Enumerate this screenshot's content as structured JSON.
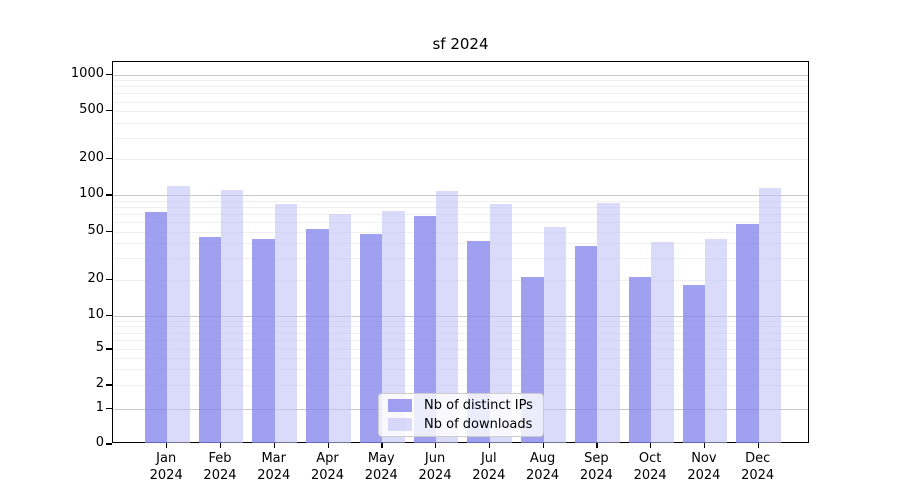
{
  "chart_data": {
    "type": "bar",
    "title": "sf 2024",
    "categories": [
      "Jan",
      "Feb",
      "Mar",
      "Apr",
      "May",
      "Jun",
      "Jul",
      "Aug",
      "Sep",
      "Oct",
      "Nov",
      "Dec"
    ],
    "category_year": "2024",
    "series": [
      {
        "name": "Nb of distinct IPs",
        "color": "#a3a3f1",
        "fill": "rgba(133,133,237,0.78)",
        "values": [
          72,
          45,
          43,
          53,
          48,
          67,
          42,
          21,
          38,
          21,
          18,
          58
        ]
      },
      {
        "name": "Nb of downloads",
        "color": "#dadaf9",
        "fill": "rgba(193,193,246,0.6)",
        "values": [
          120,
          110,
          84,
          70,
          74,
          108,
          84,
          55,
          86,
          41,
          43,
          115
        ]
      }
    ],
    "y_axis": {
      "scale": "log-with-zero",
      "tick_labels": [
        "0",
        "1",
        "2",
        "5",
        "10",
        "20",
        "50",
        "100",
        "200",
        "500",
        "1000"
      ],
      "tick_values": [
        0,
        1,
        2,
        5,
        10,
        20,
        50,
        100,
        200,
        500,
        1000
      ],
      "major_grid_values": [
        1,
        10,
        100,
        1000
      ]
    },
    "grid": {
      "major_color": "#c9c9c9",
      "minor_color": "#efefef"
    },
    "legend": {
      "position": "bottom-center"
    },
    "ylim_top": 1000
  }
}
